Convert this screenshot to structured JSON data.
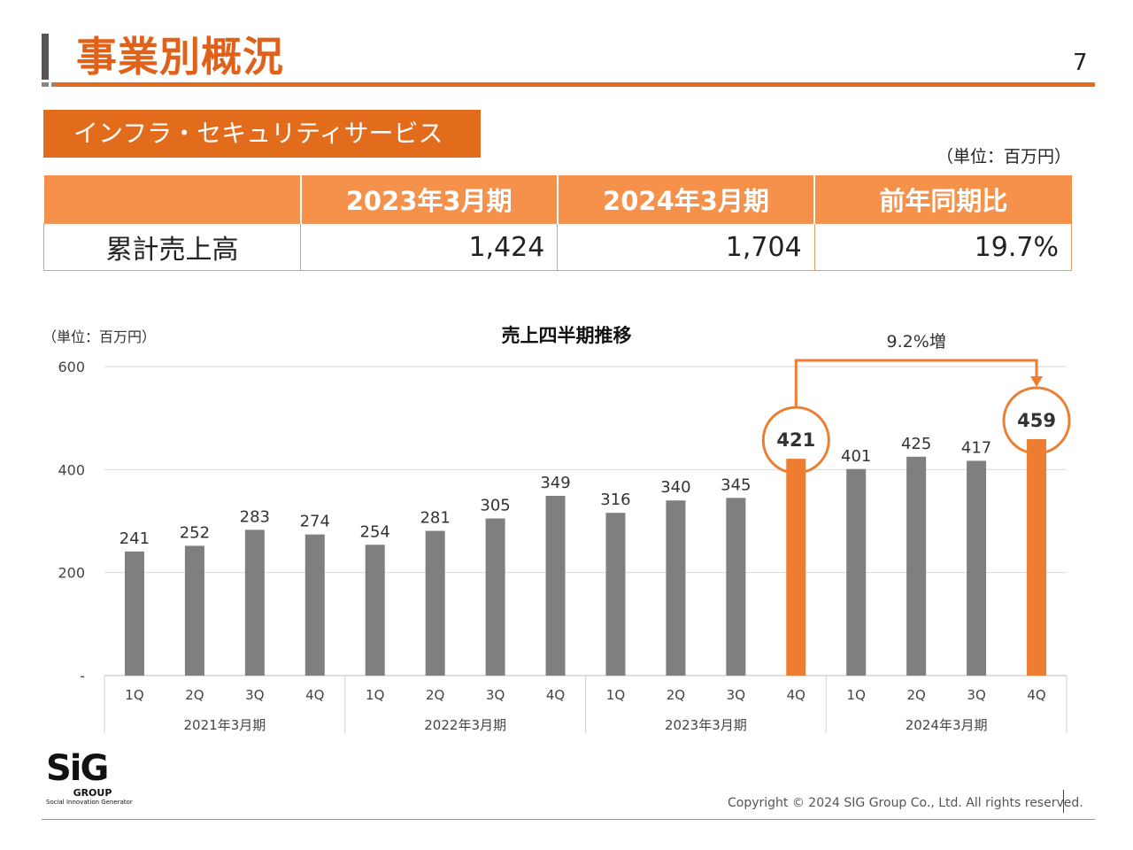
{
  "header": {
    "title": "事業別概況",
    "page_number": "7"
  },
  "section": {
    "tag": "インフラ・セキュリティサービス",
    "unit": "（単位：百万円）"
  },
  "summary_table": {
    "headers": [
      "",
      "2023年3月期",
      "2024年3月期",
      "前年同期比"
    ],
    "row_label": "累計売上高",
    "values": [
      "1,424",
      "1,704",
      "19.7%"
    ]
  },
  "chart_data": {
    "type": "bar",
    "title": "売上四半期推移",
    "unit_label": "（単位：百万円）",
    "ylim": [
      0,
      600
    ],
    "yticks": [
      {
        "value": 0,
        "label": "-"
      },
      {
        "value": 200,
        "label": "200"
      },
      {
        "value": 400,
        "label": "400"
      },
      {
        "value": 600,
        "label": "600"
      }
    ],
    "grid": true,
    "groups": [
      {
        "label": "2021年3月期",
        "quarters": [
          "1Q",
          "2Q",
          "3Q",
          "4Q"
        ],
        "values": [
          241,
          252,
          283,
          274
        ]
      },
      {
        "label": "2022年3月期",
        "quarters": [
          "1Q",
          "2Q",
          "3Q",
          "4Q"
        ],
        "values": [
          254,
          281,
          305,
          349
        ]
      },
      {
        "label": "2023年3月期",
        "quarters": [
          "1Q",
          "2Q",
          "3Q",
          "4Q"
        ],
        "values": [
          316,
          340,
          345,
          421
        ]
      },
      {
        "label": "2024年3月期",
        "quarters": [
          "1Q",
          "2Q",
          "3Q",
          "4Q"
        ],
        "values": [
          401,
          425,
          417,
          459
        ]
      }
    ],
    "highlighted": [
      "2023年3月期 4Q",
      "2024年3月期 4Q"
    ],
    "annotation": "9.2%増",
    "colors": {
      "bar": "#7f7f7f",
      "highlight": "#ed7d31",
      "grid": "#d9d9d9"
    }
  },
  "footer": {
    "copyright": "Copyright © 2024 SIG Group Co., Ltd. All rights reserved.",
    "logo_text": "SiG",
    "logo_group": "GROUP",
    "logo_tagline": "Social Innovation Generator"
  }
}
